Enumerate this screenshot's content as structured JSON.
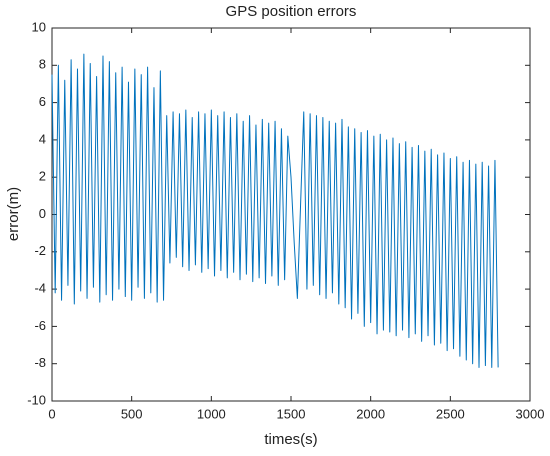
{
  "chart_data": {
    "type": "line",
    "title": "GPS position errors",
    "x_label": "times(s)",
    "y_label": "error(m)",
    "color": "#0072bd",
    "grid": false,
    "x": [
      0,
      20,
      40,
      60,
      80,
      100,
      120,
      140,
      160,
      180,
      200,
      220,
      240,
      260,
      280,
      300,
      320,
      340,
      360,
      380,
      400,
      420,
      440,
      460,
      480,
      500,
      520,
      540,
      560,
      580,
      600,
      620,
      640,
      660,
      680,
      700,
      720,
      740,
      760,
      780,
      800,
      820,
      840,
      860,
      880,
      900,
      920,
      940,
      960,
      980,
      1000,
      1020,
      1040,
      1060,
      1080,
      1100,
      1120,
      1140,
      1160,
      1180,
      1200,
      1220,
      1240,
      1260,
      1280,
      1300,
      1320,
      1340,
      1360,
      1380,
      1400,
      1420,
      1440,
      1460,
      1480,
      1500,
      1520,
      1540,
      1560,
      1580,
      1600,
      1620,
      1640,
      1660,
      1680,
      1700,
      1720,
      1740,
      1760,
      1780,
      1800,
      1820,
      1840,
      1860,
      1880,
      1900,
      1920,
      1940,
      1960,
      1980,
      2000,
      2020,
      2040,
      2060,
      2080,
      2100,
      2120,
      2140,
      2160,
      2180,
      2200,
      2220,
      2240,
      2260,
      2280,
      2300,
      2320,
      2340,
      2360,
      2380,
      2400,
      2420,
      2440,
      2460,
      2480,
      2500,
      2520,
      2540,
      2560,
      2580,
      2600,
      2620,
      2640,
      2660,
      2680,
      2700,
      2720,
      2740,
      2760,
      2780,
      2800
    ],
    "values": [
      7.5,
      -4.2,
      8.0,
      -4.6,
      7.2,
      -3.8,
      8.3,
      -4.8,
      7.8,
      -4.1,
      8.6,
      -4.5,
      8.1,
      -3.9,
      7.4,
      -4.7,
      8.5,
      -4.3,
      8.2,
      -4.6,
      7.6,
      -4.0,
      7.9,
      -4.4,
      7.1,
      -4.6,
      7.8,
      -3.9,
      7.5,
      -4.5,
      7.9,
      -4.2,
      6.8,
      -4.7,
      7.7,
      -4.6,
      5.3,
      -2.6,
      5.5,
      -2.3,
      5.4,
      -2.8,
      5.6,
      -3.0,
      5.2,
      -2.7,
      5.5,
      -3.1,
      5.4,
      -2.9,
      5.6,
      -3.3,
      5.3,
      -3.0,
      5.5,
      -3.4,
      5.2,
      -3.1,
      5.4,
      -3.5,
      5.0,
      -3.2,
      5.3,
      -3.6,
      4.8,
      -3.4,
      5.1,
      -3.7,
      4.9,
      -3.3,
      5.0,
      -3.8,
      4.6,
      -3.5,
      4.2,
      2.0,
      -1.5,
      -4.5,
      0.5,
      5.5,
      -4.0,
      5.4,
      -3.8,
      5.3,
      -4.3,
      5.2,
      -4.5,
      5.0,
      -4.2,
      4.9,
      -4.8,
      5.1,
      -5.0,
      4.7,
      -5.6,
      4.6,
      -5.3,
      4.4,
      -6.0,
      4.5,
      -5.8,
      4.2,
      -6.4,
      4.3,
      -6.2,
      4.0,
      -6.3,
      4.1,
      -6.5,
      3.8,
      -6.2,
      3.9,
      -6.6,
      3.6,
      -6.4,
      3.7,
      -6.8,
      3.4,
      -6.5,
      3.5,
      -7.0,
      3.2,
      -6.9,
      3.3,
      -7.3,
      3.0,
      -7.2,
      3.1,
      -7.6,
      2.8,
      -7.8,
      2.9,
      -8.0,
      2.7,
      -8.2,
      2.8,
      -8.1,
      2.6,
      -8.2,
      2.9,
      -8.2
    ],
    "xlim": [
      0,
      3000
    ],
    "xticks": [
      0,
      500,
      1000,
      1500,
      2000,
      2500,
      3000
    ],
    "ylim": [
      -10,
      10
    ],
    "yticks": [
      -10,
      -8,
      -6,
      -4,
      -2,
      0,
      2,
      4,
      6,
      8,
      10
    ]
  }
}
